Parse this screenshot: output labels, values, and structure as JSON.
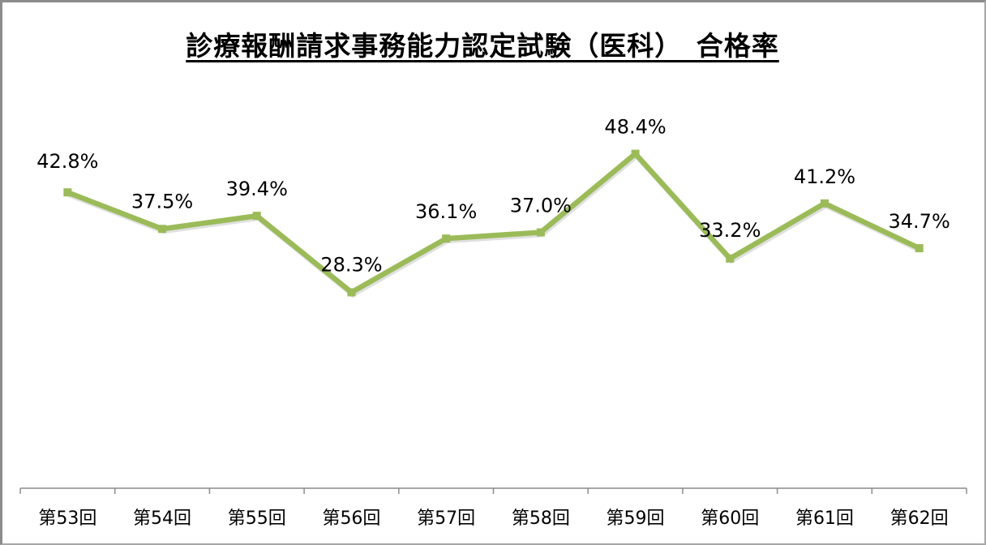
{
  "chart_data": {
    "type": "line",
    "title": "診療報酬請求事務能力認定試験（医科）　合格率",
    "xlabel": "",
    "ylabel": "",
    "categories": [
      "第53回",
      "第54回",
      "第55回",
      "第56回",
      "第57回",
      "第58回",
      "第59回",
      "第60回",
      "第61回",
      "第62回"
    ],
    "series": [
      {
        "name": "合格率",
        "values": [
          42.8,
          37.5,
          39.4,
          28.3,
          36.1,
          37.0,
          48.4,
          33.2,
          41.2,
          34.7
        ],
        "labels": [
          "42.8%",
          "37.5%",
          "39.4%",
          "28.3%",
          "36.1%",
          "37.0%",
          "48.4%",
          "33.2%",
          "41.2%",
          "34.7%"
        ],
        "color": "#9bbb59"
      }
    ],
    "ylim": [
      0,
      60
    ],
    "grid": false,
    "legend": "none",
    "y_axis_visible": false
  },
  "colors": {
    "line": "#9bbb59",
    "axis": "#8c8c8c",
    "border": "#8c8c8c",
    "text": "#000000"
  }
}
